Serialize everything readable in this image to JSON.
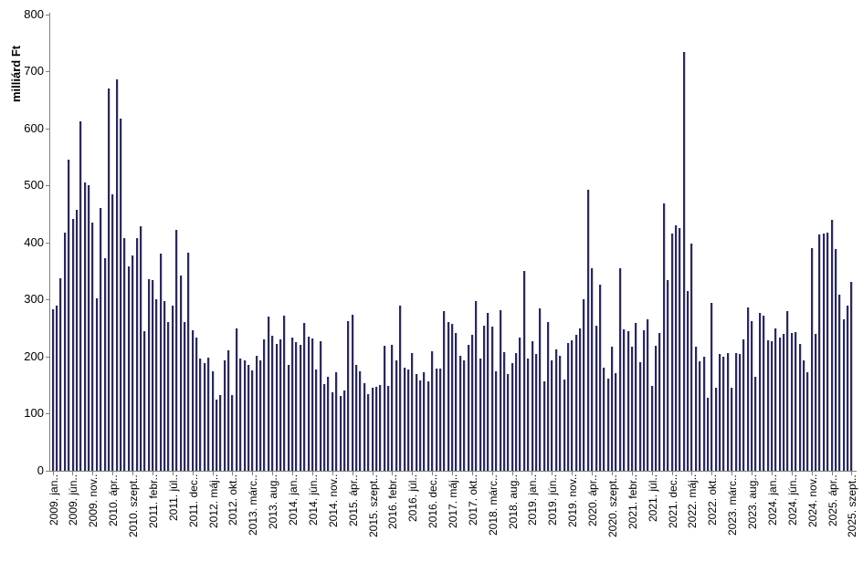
{
  "chart_data": {
    "type": "bar",
    "title": "",
    "ylabel": "milliárd Ft",
    "xlabel": "",
    "ylim": [
      0,
      800
    ],
    "ytick_step": 100,
    "ytick_labels": [
      "0",
      "100",
      "200",
      "300",
      "400",
      "500",
      "600",
      "700",
      "800"
    ],
    "grid": false,
    "legend": "none",
    "n_bars": 201,
    "x_range_visible": {
      "first_tick": "2009. jan..",
      "last_tick": "2025. szept..",
      "tick_every_n_bars": 5
    },
    "x_tick_labels": [
      "2009. jan..",
      "2009. jún..",
      "2009. nov..",
      "2010. ápr..",
      "2010. szept..",
      "2011. febr..",
      "2011. júl..",
      "2011. dec..",
      "2012. máj..",
      "2012. okt..",
      "2013. márc..",
      "2013. aug..",
      "2014. jan..",
      "2014. jún..",
      "2014. nov..",
      "2015. ápr..",
      "2015. szept..",
      "2016. febr..",
      "2016. júl..",
      "2016. dec..",
      "2017. máj..",
      "2017. okt..",
      "2018. márc..",
      "2018. aug..",
      "2019. jan..",
      "2019. jún..",
      "2019. nov..",
      "2020. ápr..",
      "2020. szept..",
      "2021. febr..",
      "2021. júl..",
      "2021. dec..",
      "2022. máj..",
      "2022. okt..",
      "2023. márc..",
      "2023. aug..",
      "2024. jan..",
      "2024. jún..",
      "2024. nov..",
      "2025. ápr..",
      "2025. szept.."
    ],
    "series": [
      {
        "name": "",
        "values": [
          283,
          290,
          337,
          418,
          545,
          441,
          457,
          613,
          505,
          501,
          435,
          302,
          460,
          372,
          670,
          485,
          686,
          618,
          408,
          358,
          378,
          408,
          428,
          244,
          336,
          334,
          300,
          381,
          297,
          261,
          289,
          423,
          343,
          260,
          383,
          246,
          234,
          196,
          188,
          198,
          175,
          124,
          132,
          194,
          211,
          133,
          250,
          197,
          194,
          185,
          176,
          202,
          193,
          230,
          271,
          236,
          222,
          230,
          272,
          186,
          233,
          225,
          220,
          259,
          235,
          232,
          177,
          227,
          152,
          164,
          137,
          173,
          131,
          141,
          263,
          274,
          185,
          174,
          153,
          135,
          145,
          147,
          150,
          219,
          148,
          221,
          193,
          290,
          180,
          177,
          207,
          169,
          159,
          172,
          156,
          210,
          179,
          179,
          280,
          260,
          258,
          241,
          201,
          193,
          220,
          238,
          298,
          196,
          254,
          276,
          253,
          175,
          282,
          208,
          170,
          188,
          207,
          234,
          350,
          196,
          227,
          205,
          285,
          156,
          261,
          194,
          212,
          201,
          160,
          224,
          228,
          238,
          250,
          300,
          493,
          355,
          255,
          326,
          180,
          161,
          218,
          171,
          355,
          248,
          244,
          218,
          259,
          190,
          247,
          266,
          149,
          219,
          242,
          469,
          334,
          416,
          431,
          426,
          735,
          315,
          398,
          218,
          192,
          200,
          128,
          295,
          145,
          205,
          200,
          206,
          145,
          207,
          205,
          230,
          287,
          263,
          165,
          277,
          272,
          229,
          227,
          250,
          234,
          240,
          280,
          242,
          243,
          222,
          193,
          172,
          390,
          240,
          415,
          416,
          417,
          440,
          388,
          308,
          266,
          290,
          331
        ]
      }
    ],
    "colors": {
      "bar": "#2b2a59",
      "bar_edge": "#c9c9d9",
      "axis": "#808080",
      "text": "#000000",
      "background": "#ffffff"
    }
  }
}
